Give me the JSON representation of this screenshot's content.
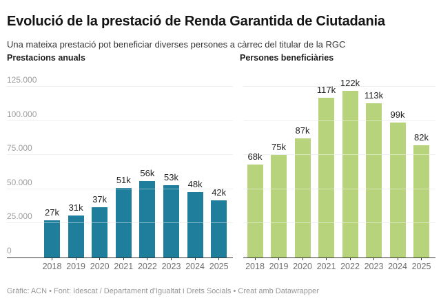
{
  "header": {
    "title": "Evolució de la prestació de Renda Garantida de Ciutadania",
    "subtitle": "Una mateixa prestació pot beneficiar diverses persones a càrrec del titular de la RGC"
  },
  "footer": {
    "text": "Gràfic: ACN • Font: Idescat / Departament d’Igualtat i Drets Socials • Creat amb Datawrapper"
  },
  "chart_data": [
    {
      "type": "bar",
      "title": "Prestacions anuals",
      "categories": [
        "2018",
        "2019",
        "2020",
        "2021",
        "2022",
        "2023",
        "2024",
        "2025"
      ],
      "values": [
        27000,
        31000,
        37000,
        51000,
        56000,
        53000,
        48000,
        42000
      ],
      "value_labels": [
        "27k",
        "31k",
        "37k",
        "51k",
        "56k",
        "53k",
        "48k",
        "42k"
      ],
      "bar_color": "#1f7e9b",
      "xlabel": "",
      "ylabel": "",
      "ylim": [
        0,
        138000
      ],
      "grid": true,
      "legend": "none",
      "yticks": [
        {
          "value": 0,
          "label": "0"
        },
        {
          "value": 25000,
          "label": "25.000"
        },
        {
          "value": 50000,
          "label": "50.000"
        },
        {
          "value": 75000,
          "label": "75.000"
        },
        {
          "value": 100000,
          "label": "100.000"
        },
        {
          "value": 125000,
          "label": "125.000"
        }
      ],
      "show_ytick_labels": true
    },
    {
      "type": "bar",
      "title": "Persones beneficiàries",
      "categories": [
        "2018",
        "2019",
        "2020",
        "2021",
        "2022",
        "2023",
        "2024",
        "2025"
      ],
      "values": [
        68000,
        75000,
        87000,
        117000,
        122000,
        113000,
        99000,
        82000
      ],
      "value_labels": [
        "68k",
        "75k",
        "87k",
        "117k",
        "122k",
        "113k",
        "99k",
        "82k"
      ],
      "bar_color": "#b7d47d",
      "xlabel": "",
      "ylabel": "",
      "ylim": [
        0,
        138000
      ],
      "grid": true,
      "legend": "none",
      "yticks": [
        {
          "value": 0,
          "label": "0"
        },
        {
          "value": 25000,
          "label": "25.000"
        },
        {
          "value": 50000,
          "label": "50.000"
        },
        {
          "value": 75000,
          "label": "75.000"
        },
        {
          "value": 100000,
          "label": "100.000"
        },
        {
          "value": 125000,
          "label": "125.000"
        }
      ],
      "show_ytick_labels": false
    }
  ]
}
